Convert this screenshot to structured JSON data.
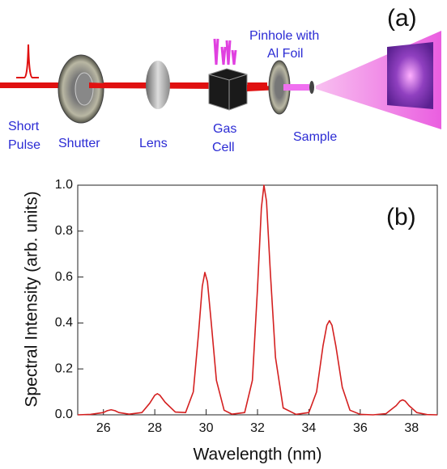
{
  "diagram": {
    "panel_label": "(a)",
    "labels": [
      {
        "lines": [
          "Short",
          "Pulse"
        ]
      },
      {
        "lines": [
          "Shutter"
        ]
      },
      {
        "lines": [
          "Lens"
        ]
      },
      {
        "lines": [
          "Gas",
          "Cell"
        ]
      },
      {
        "lines": [
          "Pinhole with",
          "Al Foil"
        ]
      },
      {
        "lines": [
          "Sample"
        ]
      }
    ]
  },
  "chart_data": {
    "type": "line",
    "panel_label": "(b)",
    "x_label": "Wavelength (nm)",
    "y_label": "Spectral Intensity (arb. units)",
    "x": [
      25,
      25.5,
      26,
      26.15,
      26.3,
      26.45,
      26.6,
      27,
      27.5,
      27.8,
      28.0,
      28.1,
      28.2,
      28.4,
      28.8,
      29.2,
      29.5,
      29.7,
      29.85,
      29.95,
      30.05,
      30.2,
      30.4,
      30.7,
      31.0,
      31.5,
      31.8,
      32.0,
      32.15,
      32.25,
      32.35,
      32.5,
      32.7,
      33.0,
      33.5,
      34.0,
      34.3,
      34.55,
      34.7,
      34.8,
      34.9,
      35.05,
      35.3,
      35.6,
      36.0,
      36.5,
      37.0,
      37.4,
      37.55,
      37.65,
      37.75,
      37.9,
      38.2,
      38.6,
      39
    ],
    "values": [
      0.0,
      0.002,
      0.01,
      0.018,
      0.022,
      0.018,
      0.01,
      0.003,
      0.01,
      0.05,
      0.085,
      0.092,
      0.085,
      0.055,
      0.012,
      0.01,
      0.1,
      0.35,
      0.56,
      0.62,
      0.58,
      0.4,
      0.15,
      0.02,
      0.003,
      0.01,
      0.15,
      0.55,
      0.9,
      1.0,
      0.93,
      0.62,
      0.25,
      0.03,
      0.002,
      0.01,
      0.1,
      0.3,
      0.39,
      0.41,
      0.39,
      0.3,
      0.12,
      0.02,
      0.002,
      0.0,
      0.005,
      0.04,
      0.06,
      0.065,
      0.06,
      0.04,
      0.01,
      0.001,
      0.0
    ],
    "color": "#d42020",
    "xlim": [
      25,
      39
    ],
    "xticks": [
      26,
      28,
      30,
      32,
      34,
      36,
      38
    ],
    "ylim": [
      0,
      1
    ],
    "yticks": [
      {
        "value": 0,
        "label": "0.0"
      },
      0.2,
      0.4,
      0.6,
      0.8,
      {
        "value": 1,
        "label": "1.0"
      }
    ],
    "grid": false
  }
}
